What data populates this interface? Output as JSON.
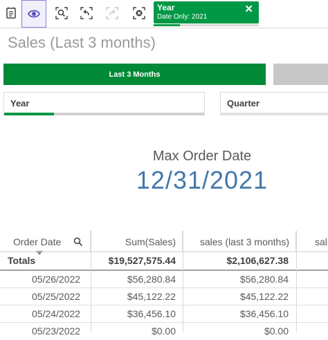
{
  "toolbar": {
    "buttons": [
      {
        "name": "insights-icon"
      },
      {
        "name": "smart-search-icon"
      },
      {
        "name": "lasso-search-icon"
      },
      {
        "name": "step-back-icon"
      },
      {
        "name": "step-forward-icon"
      },
      {
        "name": "clear-selections-icon"
      }
    ],
    "selection": {
      "field": "Year",
      "value": "Date Only: 2021",
      "close_glyph": "✕"
    }
  },
  "sheet": {
    "title": "Sales (Last 3 months)"
  },
  "buttons": {
    "last3months_label": "Last 3 Months"
  },
  "filters": {
    "year_label": "Year",
    "quarter_label": "Quarter"
  },
  "kpi": {
    "label": "Max Order Date",
    "value": "12/31/2021"
  },
  "table": {
    "headers": [
      "Order Date",
      "Sum(Sales)",
      "sales (last 3 months)",
      "sal"
    ],
    "totals": {
      "label": "Totals",
      "sum_sales": "$19,527,575.44",
      "sales_last3": "$2,106,627.38"
    },
    "rows": [
      {
        "date": "05/26/2022",
        "sum_sales": "$56,280.84",
        "sales_last3": "$56,280.84"
      },
      {
        "date": "05/25/2022",
        "sum_sales": "$45,122.22",
        "sales_last3": "$45,122.22"
      },
      {
        "date": "05/24/2022",
        "sum_sales": "$36,456.10",
        "sales_last3": "$36,456.10"
      },
      {
        "date": "05/23/2022",
        "sum_sales": "$0.00",
        "sales_last3": "$0.00"
      }
    ]
  },
  "colors": {
    "accent_green": "#009845",
    "button_green": "#008936",
    "kpi_blue": "#4477aa",
    "active_outline": "#8a80d8"
  }
}
